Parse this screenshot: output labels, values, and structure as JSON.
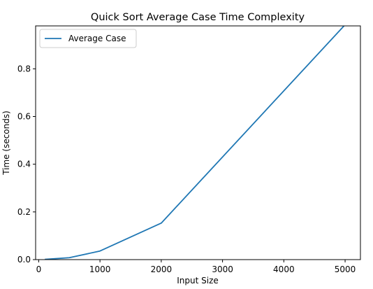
{
  "chart_data": {
    "type": "line",
    "title": "Quick Sort Average Case Time Complexity",
    "xlabel": "Input Size",
    "ylabel": "Time (seconds)",
    "xlim": [
      -50,
      5250
    ],
    "ylim": [
      0,
      0.98
    ],
    "xticks": [
      0,
      1000,
      2000,
      3000,
      4000,
      5000
    ],
    "xtick_labels": [
      "0",
      "1000",
      "2000",
      "3000",
      "4000",
      "5000"
    ],
    "yticks": [
      0.0,
      0.2,
      0.4,
      0.6,
      0.8
    ],
    "ytick_labels": [
      "0.0",
      "0.2",
      "0.4",
      "0.6",
      "0.8"
    ],
    "grid": false,
    "legend_position": "top-left",
    "series": [
      {
        "name": "Average Case",
        "color": "#1f77b4",
        "x": [
          100,
          500,
          1000,
          2000,
          5000
        ],
        "y": [
          0.001,
          0.008,
          0.036,
          0.153,
          0.985
        ]
      }
    ]
  }
}
